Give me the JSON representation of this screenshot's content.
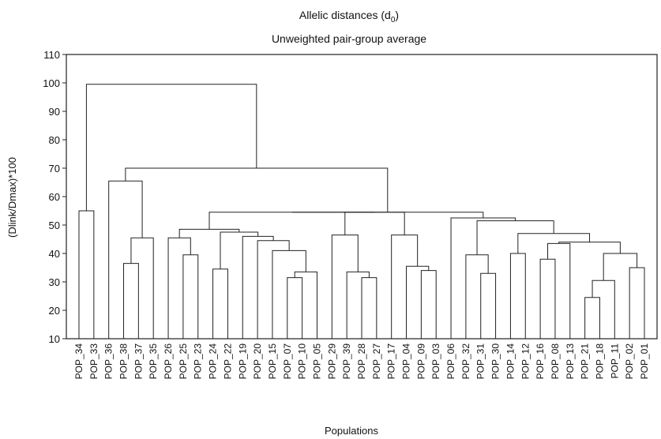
{
  "chart_data": {
    "type": "dendrogram",
    "title": "Allelic distances (d",
    "title_subscript": "0",
    "title_suffix": ")",
    "subtitle": "Unweighted pair-group average",
    "xlabel": "Populations",
    "ylabel": "(Dlink/Dmax)*100",
    "ylim": [
      10,
      110
    ],
    "yticks": [
      10,
      20,
      30,
      40,
      50,
      60,
      70,
      80,
      90,
      100,
      110
    ],
    "grid": false,
    "leaves": [
      "POP_34",
      "POP_33",
      "POP_36",
      "POP_38",
      "POP_37",
      "POP_35",
      "POP_26",
      "POP_25",
      "POP_23",
      "POP_24",
      "POP_22",
      "POP_19",
      "POP_20",
      "POP_15",
      "POP_07",
      "POP_10",
      "POP_05",
      "POP_29",
      "POP_39",
      "POP_28",
      "POP_27",
      "POP_17",
      "POP_04",
      "POP_09",
      "POP_03",
      "POP_06",
      "POP_32",
      "POP_31",
      "POP_30",
      "POP_14",
      "POP_12",
      "POP_16",
      "POP_08",
      "POP_13",
      "POP_21",
      "POP_18",
      "POP_11",
      "POP_02",
      "POP_01"
    ],
    "merges": [
      {
        "id": "A",
        "children": [
          "POP_34",
          "POP_33"
        ],
        "height": 55
      },
      {
        "id": "B",
        "children": [
          "POP_38",
          "POP_37"
        ],
        "height": 36.5
      },
      {
        "id": "C",
        "children": [
          "B",
          "POP_35"
        ],
        "height": 45.5
      },
      {
        "id": "D",
        "children": [
          "POP_36",
          "C"
        ],
        "height": 65.5
      },
      {
        "id": "E",
        "children": [
          "POP_25",
          "POP_23"
        ],
        "height": 39.5
      },
      {
        "id": "F",
        "children": [
          "POP_26",
          "E"
        ],
        "height": 45.5
      },
      {
        "id": "G",
        "children": [
          "POP_24",
          "POP_22"
        ],
        "height": 34.5
      },
      {
        "id": "H",
        "children": [
          "POP_07",
          "POP_10"
        ],
        "height": 31.5
      },
      {
        "id": "I",
        "children": [
          "H",
          "POP_05"
        ],
        "height": 33.5
      },
      {
        "id": "J",
        "children": [
          "POP_15",
          "I"
        ],
        "height": 41
      },
      {
        "id": "K",
        "children": [
          "POP_20",
          "J"
        ],
        "height": 44.5
      },
      {
        "id": "L",
        "children": [
          "POP_19",
          "K"
        ],
        "height": 46
      },
      {
        "id": "M",
        "children": [
          "G",
          "L"
        ],
        "height": 47.5
      },
      {
        "id": "N",
        "children": [
          "F",
          "M"
        ],
        "height": 48.5
      },
      {
        "id": "O",
        "children": [
          "POP_28",
          "POP_27"
        ],
        "height": 31.5
      },
      {
        "id": "P",
        "children": [
          "POP_39",
          "O"
        ],
        "height": 33.5
      },
      {
        "id": "Q",
        "children": [
          "POP_29",
          "P"
        ],
        "height": 46.5
      },
      {
        "id": "R",
        "children": [
          "POP_09",
          "POP_03"
        ],
        "height": 34
      },
      {
        "id": "S",
        "children": [
          "POP_04",
          "R"
        ],
        "height": 35.5
      },
      {
        "id": "T",
        "children": [
          "POP_17",
          "S"
        ],
        "height": 46.5
      },
      {
        "id": "U",
        "children": [
          "Q",
          "T"
        ],
        "height": 54.5
      },
      {
        "id": "V",
        "children": [
          "POP_31",
          "POP_30"
        ],
        "height": 33
      },
      {
        "id": "W",
        "children": [
          "POP_32",
          "V"
        ],
        "height": 39.5
      },
      {
        "id": "X",
        "children": [
          "POP_14",
          "POP_12"
        ],
        "height": 40
      },
      {
        "id": "Y",
        "children": [
          "POP_16",
          "POP_08"
        ],
        "height": 38
      },
      {
        "id": "Z",
        "children": [
          "Y",
          "POP_13"
        ],
        "height": 43.5
      },
      {
        "id": "AA",
        "children": [
          "POP_21",
          "POP_18"
        ],
        "height": 24.5
      },
      {
        "id": "AB",
        "children": [
          "AA",
          "POP_11"
        ],
        "height": 30.5
      },
      {
        "id": "AC",
        "children": [
          "POP_02",
          "POP_01"
        ],
        "height": 35
      },
      {
        "id": "AD",
        "children": [
          "AB",
          "AC"
        ],
        "height": 40
      },
      {
        "id": "AE",
        "children": [
          "Z",
          "AD"
        ],
        "height": 44
      },
      {
        "id": "AF",
        "children": [
          "X",
          "AE"
        ],
        "height": 47
      },
      {
        "id": "AG",
        "children": [
          "W",
          "AF"
        ],
        "height": 51.5
      },
      {
        "id": "AH",
        "children": [
          "POP_06",
          "AG"
        ],
        "height": 52.5
      },
      {
        "id": "AI",
        "children": [
          "N",
          "U"
        ],
        "height": 54.5
      },
      {
        "id": "AJ",
        "children": [
          "AI",
          "AH"
        ],
        "height": 54.5
      },
      {
        "id": "AK",
        "children": [
          "D",
          "AJ"
        ],
        "height": 70
      },
      {
        "id": "AL",
        "children": [
          "A",
          "AK"
        ],
        "height": 99.5
      }
    ]
  }
}
